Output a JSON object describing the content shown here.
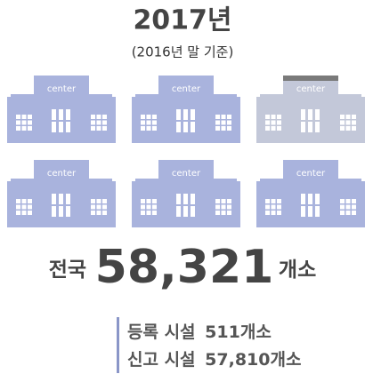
{
  "header": {
    "title": "2017년",
    "subtitle": "(2016년 말 기준)"
  },
  "buildings": [
    {
      "label": "center"
    },
    {
      "label": "center"
    },
    {
      "label": "center"
    },
    {
      "label": "center"
    },
    {
      "label": "center"
    },
    {
      "label": "center"
    }
  ],
  "total": {
    "prefix": "전국",
    "value": "58,321",
    "unit": "개소"
  },
  "breakdown": [
    {
      "label": "등록 시설",
      "value": "511",
      "unit": "개소"
    },
    {
      "label": "신고 시설",
      "value": "57,810",
      "unit": "개소"
    }
  ]
}
